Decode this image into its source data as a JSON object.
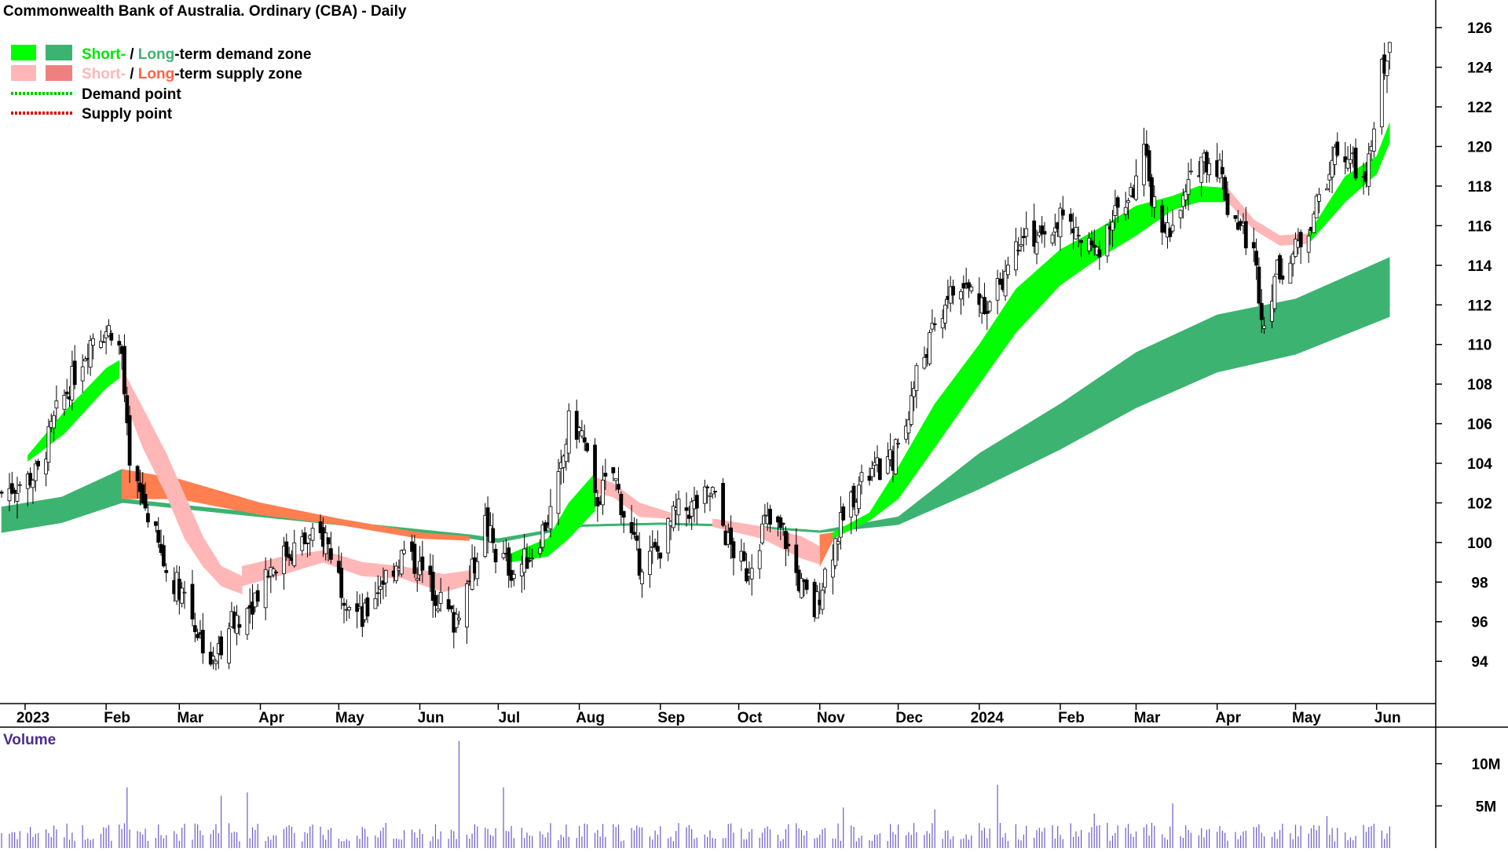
{
  "title": "Commonwealth Bank of Australia. Ordinary (CBA) - Daily",
  "legend": {
    "demand_short": "Short-",
    "demand_sep": " / ",
    "demand_long": "Long",
    "demand_rest": "-term demand zone",
    "supply_short": "Short-",
    "supply_sep": " / ",
    "supply_long": "Long",
    "supply_rest": "-term supply zone",
    "demand_point": "Demand point",
    "supply_point": "Supply point"
  },
  "colors": {
    "demand_short": "#00ff00",
    "demand_long": "#3cb371",
    "supply_short": "#ffb6b6",
    "supply_long": "#ff7f50",
    "demand_point": "#00c800",
    "supply_point": "#e00000",
    "volume": "#6a5acd",
    "volume_label": "#4b2c8c",
    "candle": "#000000"
  },
  "chart_data": {
    "type": "candlestick",
    "price_axis": {
      "min": 92.5,
      "max": 127,
      "ticks": [
        94,
        96,
        98,
        100,
        102,
        104,
        106,
        108,
        110,
        112,
        114,
        116,
        118,
        120,
        122,
        124,
        126
      ]
    },
    "time_axis": {
      "start": "2022-12-23",
      "end": "2024-06-08",
      "labels": [
        {
          "date": "2023-01-01",
          "label": "2023"
        },
        {
          "date": "2023-02-01",
          "label": "Feb"
        },
        {
          "date": "2023-03-01",
          "label": "Mar"
        },
        {
          "date": "2023-04-01",
          "label": "Apr"
        },
        {
          "date": "2023-05-01",
          "label": "May"
        },
        {
          "date": "2023-06-01",
          "label": "Jun"
        },
        {
          "date": "2023-07-01",
          "label": "Jul"
        },
        {
          "date": "2023-08-01",
          "label": "Aug"
        },
        {
          "date": "2023-09-01",
          "label": "Sep"
        },
        {
          "date": "2023-10-01",
          "label": "Oct"
        },
        {
          "date": "2023-11-01",
          "label": "Nov"
        },
        {
          "date": "2023-12-01",
          "label": "Dec"
        },
        {
          "date": "2024-01-01",
          "label": "2024"
        },
        {
          "date": "2024-02-01",
          "label": "Feb"
        },
        {
          "date": "2024-03-01",
          "label": "Mar"
        },
        {
          "date": "2024-04-01",
          "label": "Apr"
        },
        {
          "date": "2024-05-01",
          "label": "May"
        },
        {
          "date": "2024-06-01",
          "label": "Jun"
        }
      ]
    },
    "close_path": [
      [
        "2022-12-23",
        102.5
      ],
      [
        "2023-01-06",
        103.5
      ],
      [
        "2023-01-13",
        106.5
      ],
      [
        "2023-01-20",
        108.5
      ],
      [
        "2023-01-27",
        110.5
      ],
      [
        "2023-02-03",
        110.8
      ],
      [
        "2023-02-07",
        109.5
      ],
      [
        "2023-02-10",
        103.5
      ],
      [
        "2023-02-17",
        101.5
      ],
      [
        "2023-02-24",
        98.5
      ],
      [
        "2023-03-03",
        97.5
      ],
      [
        "2023-03-08",
        95.5
      ],
      [
        "2023-03-14",
        93.8
      ],
      [
        "2023-03-20",
        96
      ],
      [
        "2023-03-27",
        96.5
      ],
      [
        "2023-04-03",
        98.5
      ],
      [
        "2023-04-11",
        99.5
      ],
      [
        "2023-04-18",
        100
      ],
      [
        "2023-04-26",
        100.3
      ],
      [
        "2023-05-03",
        97.5
      ],
      [
        "2023-05-10",
        96
      ],
      [
        "2023-05-17",
        98
      ],
      [
        "2023-05-26",
        99.5
      ],
      [
        "2023-06-02",
        98.5
      ],
      [
        "2023-06-09",
        97
      ],
      [
        "2023-06-14",
        96
      ],
      [
        "2023-06-21",
        98.5
      ],
      [
        "2023-06-26",
        101
      ],
      [
        "2023-06-30",
        99.5
      ],
      [
        "2023-07-07",
        98.5
      ],
      [
        "2023-07-14",
        99.5
      ],
      [
        "2023-07-21",
        101.5
      ],
      [
        "2023-07-25",
        103.5
      ],
      [
        "2023-07-28",
        106
      ],
      [
        "2023-08-02",
        105.5
      ],
      [
        "2023-08-07",
        102
      ],
      [
        "2023-08-14",
        103.5
      ],
      [
        "2023-08-18",
        101.5
      ],
      [
        "2023-08-24",
        99
      ],
      [
        "2023-08-31",
        99.5
      ],
      [
        "2023-09-07",
        101.5
      ],
      [
        "2023-09-14",
        101.8
      ],
      [
        "2023-09-21",
        102.5
      ],
      [
        "2023-09-27",
        100
      ],
      [
        "2023-10-04",
        98.5
      ],
      [
        "2023-10-11",
        101
      ],
      [
        "2023-10-18",
        100.5
      ],
      [
        "2023-10-24",
        98
      ],
      [
        "2023-10-30",
        96.5
      ],
      [
        "2023-11-03",
        98.5
      ],
      [
        "2023-11-08",
        100.5
      ],
      [
        "2023-11-14",
        102.5
      ],
      [
        "2023-11-21",
        103.5
      ],
      [
        "2023-11-28",
        104
      ],
      [
        "2023-12-04",
        106
      ],
      [
        "2023-12-08",
        108.5
      ],
      [
        "2023-12-14",
        110.5
      ],
      [
        "2023-12-20",
        112.5
      ],
      [
        "2023-12-28",
        112.8
      ],
      [
        "2024-01-05",
        112
      ],
      [
        "2024-01-12",
        114
      ],
      [
        "2024-01-18",
        116
      ],
      [
        "2024-01-25",
        115
      ],
      [
        "2024-02-01",
        116.5
      ],
      [
        "2024-02-07",
        115.5
      ],
      [
        "2024-02-14",
        114.5
      ],
      [
        "2024-02-21",
        116.5
      ],
      [
        "2024-02-28",
        117.5
      ],
      [
        "2024-03-04",
        119.5
      ],
      [
        "2024-03-08",
        117
      ],
      [
        "2024-03-14",
        115.5
      ],
      [
        "2024-03-20",
        117.5
      ],
      [
        "2024-03-26",
        119.5
      ],
      [
        "2024-04-02",
        119
      ],
      [
        "2024-04-05",
        117
      ],
      [
        "2024-04-10",
        116
      ],
      [
        "2024-04-15",
        114.5
      ],
      [
        "2024-04-19",
        111
      ],
      [
        "2024-04-23",
        113.5
      ],
      [
        "2024-04-30",
        114.5
      ],
      [
        "2024-05-06",
        116
      ],
      [
        "2024-05-13",
        118.5
      ],
      [
        "2024-05-17",
        120
      ],
      [
        "2024-05-23",
        119
      ],
      [
        "2024-05-28",
        118
      ],
      [
        "2024-06-03",
        124
      ],
      [
        "2024-06-06",
        124.8
      ]
    ],
    "demand_short_zone": [
      [
        "2023-01-02",
        104.4,
        104.1
      ],
      [
        "2023-01-16",
        106.6,
        105.5
      ],
      [
        "2023-02-01",
        108.8,
        107.8
      ],
      [
        "2023-02-06",
        109.2,
        108.3
      ]
    ],
    "supply_short_zone": [
      [
        "2023-02-07",
        108.8,
        107.6
      ],
      [
        "2023-02-15",
        106.8,
        104.8
      ],
      [
        "2023-02-24",
        104.5,
        102.4
      ],
      [
        "2023-03-03",
        102.4,
        100.2
      ],
      [
        "2023-03-10",
        100.3,
        98.8
      ],
      [
        "2023-03-17",
        98.8,
        97.8
      ],
      [
        "2023-03-25",
        98.3,
        97.4
      ]
    ],
    "supply_long_zone_early": [
      [
        "2023-02-07",
        103.7,
        102.2
      ],
      [
        "2023-03-01",
        103.2,
        102.2
      ],
      [
        "2023-04-01",
        102,
        101.4
      ],
      [
        "2023-05-01",
        101.2,
        100.9
      ],
      [
        "2023-06-01",
        100.5,
        100.2
      ],
      [
        "2023-06-20",
        100.3,
        100.1
      ]
    ],
    "supply_short_zone_mid": [
      [
        "2023-03-25",
        98.8,
        97.8
      ],
      [
        "2023-04-10",
        99.3,
        98.4
      ],
      [
        "2023-04-25",
        99.6,
        99.0
      ],
      [
        "2023-05-10",
        99.0,
        98.3
      ],
      [
        "2023-05-25",
        98.8,
        98.2
      ],
      [
        "2023-06-10",
        98.4,
        97.5
      ],
      [
        "2023-06-21",
        98.6,
        97.9
      ]
    ],
    "demand_short_zone_mid": [
      [
        "2023-07-05",
        99.4,
        99.0
      ],
      [
        "2023-07-20",
        100.2,
        99.3
      ],
      [
        "2023-07-28",
        102.0,
        100.2
      ],
      [
        "2023-08-07",
        103.5,
        101.6
      ]
    ],
    "supply_short_zone_mid2": [
      [
        "2023-08-07",
        103.3,
        102.5
      ],
      [
        "2023-08-14",
        103.0,
        102.3
      ],
      [
        "2023-08-24",
        102.0,
        101.3
      ],
      [
        "2023-09-05",
        101.5,
        101.2
      ]
    ],
    "demand_long_zone": [
      [
        "2022-12-23",
        101.8,
        100.5
      ],
      [
        "2023-01-15",
        102.3,
        101.0
      ],
      [
        "2023-02-07",
        103.7,
        102.0
      ],
      [
        "2023-02-08",
        102.2,
        102.0
      ],
      [
        "2023-06-20",
        100.4,
        100.2
      ],
      [
        "2023-07-01",
        100.2,
        100.0
      ],
      [
        "2023-08-01",
        100.9,
        100.8
      ],
      [
        "2023-09-01",
        101.0,
        100.9
      ],
      [
        "2023-10-01",
        100.9,
        100.8
      ],
      [
        "2023-11-01",
        100.6,
        100.5
      ],
      [
        "2023-12-01",
        101.3,
        100.9
      ],
      [
        "2024-01-01",
        104.5,
        102.7
      ],
      [
        "2024-02-01",
        107.0,
        104.7
      ],
      [
        "2024-03-01",
        109.6,
        106.8
      ],
      [
        "2024-04-01",
        111.5,
        108.6
      ],
      [
        "2024-05-01",
        112.3,
        109.5
      ],
      [
        "2024-06-06",
        114.4,
        111.4
      ]
    ],
    "supply_short_zone_late": [
      [
        "2023-09-21",
        101.2,
        100.8
      ],
      [
        "2023-10-10",
        100.8,
        100.2
      ],
      [
        "2023-10-25",
        100.3,
        99.2
      ],
      [
        "2023-11-01",
        99.8,
        98.9
      ]
    ],
    "supply_long_zone_late": [
      [
        "2023-11-01",
        100.4,
        98.8
      ],
      [
        "2023-11-06",
        100.5,
        100.1
      ]
    ],
    "demand_short_zone_late": [
      [
        "2023-11-06",
        100.5,
        100.2
      ],
      [
        "2023-11-20",
        101.5,
        101.1
      ],
      [
        "2023-12-01",
        103.8,
        102.2
      ],
      [
        "2023-12-15",
        107.0,
        104.8
      ],
      [
        "2024-01-01",
        110.0,
        108.0
      ],
      [
        "2024-01-15",
        112.8,
        110.6
      ],
      [
        "2024-02-01",
        114.8,
        113.0
      ],
      [
        "2024-02-15",
        115.8,
        114.3
      ],
      [
        "2024-03-01",
        117.0,
        115.5
      ],
      [
        "2024-03-15",
        117.5,
        116.8
      ],
      [
        "2024-03-25",
        118.0,
        117.2
      ],
      [
        "2024-04-05",
        117.9,
        117.2
      ]
    ],
    "supply_short_zone_late2": [
      [
        "2024-04-05",
        117.9,
        117.2
      ],
      [
        "2024-04-15",
        116.3,
        115.8
      ],
      [
        "2024-04-25",
        115.5,
        115.0
      ],
      [
        "2024-05-06",
        115.6,
        115.1
      ]
    ],
    "demand_short_zone_end": [
      [
        "2024-05-06",
        115.6,
        115.1
      ],
      [
        "2024-05-20",
        118.5,
        117.2
      ],
      [
        "2024-06-01",
        119.5,
        118.6
      ],
      [
        "2024-06-06",
        121.2,
        120.2
      ]
    ],
    "volume_axis": {
      "max": 13.5,
      "ticks": [
        {
          "v": 5,
          "label": "5M"
        },
        {
          "v": 10,
          "label": "10M"
        }
      ]
    },
    "volume_spikes": [
      [
        "2023-02-09",
        7.2
      ],
      [
        "2023-03-17",
        6.2
      ],
      [
        "2023-03-27",
        6.6
      ],
      [
        "2023-06-16",
        12.7
      ],
      [
        "2023-07-03",
        7.2
      ],
      [
        "2023-11-10",
        4.8
      ],
      [
        "2023-12-15",
        4.6
      ],
      [
        "2024-01-08",
        7.5
      ],
      [
        "2024-02-14",
        4.1
      ],
      [
        "2024-03-15",
        5.3
      ],
      [
        "2024-05-13",
        3.8
      ]
    ]
  },
  "volume_label": "Volume"
}
